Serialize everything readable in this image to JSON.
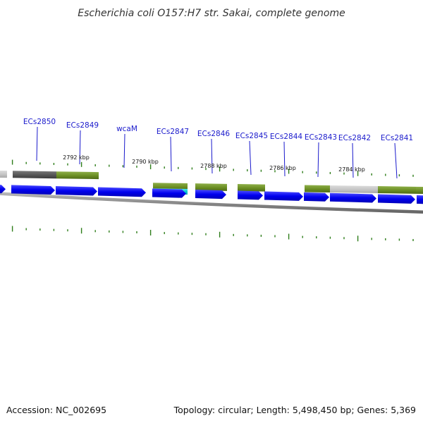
{
  "title": "Escherichia coli O157:H7 str. Sakai, complete genome",
  "footer": {
    "accession": "Accession: NC_002695",
    "summary": "Topology: circular; Length: 5,498,450 bp; Genes: 5,369"
  },
  "colors": {
    "cds": "#0000ee",
    "gene": "#6b8e23",
    "gene_pale": "#c4c4c4",
    "gene_dark": "#555555",
    "cyan": "#00c8d2",
    "backbone": "#8a8a8a",
    "tick": "#2e7d1a",
    "label": "#1a1acc"
  },
  "gene_labels": [
    "ECs2850",
    "ECs2849",
    "wcaM",
    "ECs2847",
    "ECs2846",
    "ECs2845",
    "ECs2844",
    "ECs2843",
    "ECs2842",
    "ECs2841"
  ],
  "scale_labels": [
    "2792 kbp",
    "2790 kbp",
    "2788 kbp",
    "2786 kbp",
    "2784 kbp"
  ]
}
